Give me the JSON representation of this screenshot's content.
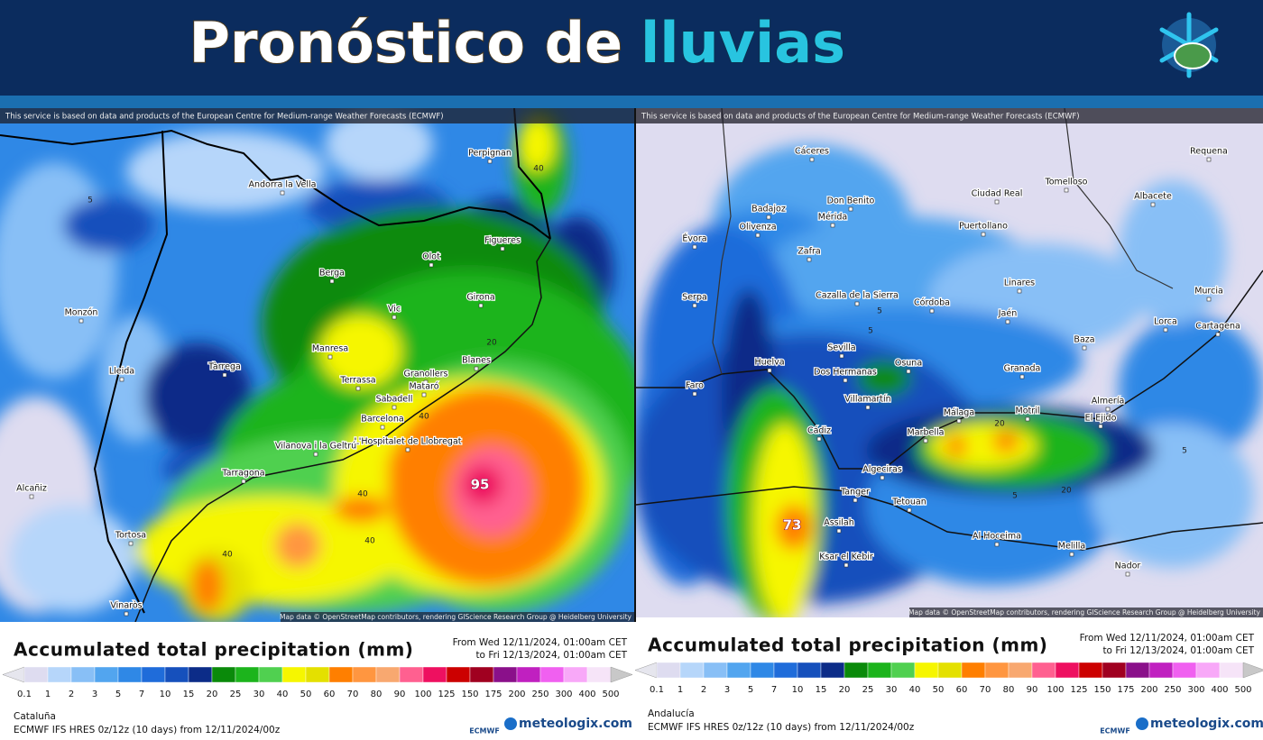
{
  "header": {
    "title": "Pronóstico de",
    "title_highlight": "lluvias"
  },
  "legend_scale": {
    "labels": [
      "0.1",
      "1",
      "2",
      "3",
      "5",
      "7",
      "10",
      "15",
      "20",
      "25",
      "30",
      "40",
      "50",
      "60",
      "70",
      "80",
      "90",
      "100",
      "125",
      "150",
      "175",
      "200",
      "250",
      "300",
      "400",
      "500"
    ],
    "colors": [
      "#dedcf0",
      "#b6d6fa",
      "#88bff6",
      "#52a5ef",
      "#2f88e6",
      "#1f6cda",
      "#1650bc",
      "#0c2c88",
      "#0a8a0a",
      "#1cb41c",
      "#50d050",
      "#f6f600",
      "#e4e000",
      "#ff7f00",
      "#ff9640",
      "#f8a870",
      "#ff6090",
      "#ee1060",
      "#cc0000",
      "#a00020",
      "#8a108a",
      "#c020c0",
      "#f060f0",
      "#f8a8f8",
      "#f6e4f8"
    ]
  },
  "panels": [
    {
      "attribution": "This service is based on data and products of the European Centre for Medium-range Weather Forecasts (ECMWF)",
      "map_credit": "Map data © OpenStreetMap contributors, rendering GIScience Research Group @ Heidelberg University",
      "cities": [
        "Perpignan",
        "Andorra la Vella",
        "Figueres",
        "Olot",
        "Berga",
        "Girona",
        "Monzón",
        "Vic",
        "Manresa",
        "Tàrrega",
        "Lleida",
        "Blanes",
        "Terrassa",
        "Granollers",
        "Mataró",
        "Sabadell",
        "Barcelona",
        "L'Hospitalet de Llobregat",
        "Vilanova i la Geltrú",
        "Tarragona",
        "Alcañiz",
        "Tortosa",
        "Vinaròs"
      ],
      "contour_labels": [
        "40",
        "5",
        "20",
        "40",
        "40",
        "40",
        "40",
        "95"
      ],
      "legend": {
        "title": "Accumulated total precipitation (mm)",
        "period_from": "From Wed 12/11/2024, 01:00am CET",
        "period_to": "to Fri 12/13/2024, 01:00am CET",
        "region": "Cataluña",
        "model": "ECMWF IFS HRES 0z/12z (10 days) from 12/11/2024/00z",
        "logo_small": "ECMWF",
        "logo": "meteologix.com"
      }
    },
    {
      "attribution": "This service is based on data and products of the European Centre for Medium-range Weather Forecasts (ECMWF)",
      "map_credit": "Map data © OpenStreetMap contributors, rendering GIScience Research Group @ Heidelberg University",
      "cities": [
        "Cáceres",
        "Ciudad Real",
        "Tomelloso",
        "Albacete",
        "Requena",
        "Don Benito",
        "Badajoz",
        "Mérida",
        "Puertollano",
        "Olivenza",
        "Évora",
        "Zafra",
        "Cazalla de la Sierra",
        "Córdoba",
        "Linares",
        "Jaén",
        "Serpa",
        "Murcia",
        "Lorca",
        "Cartagena",
        "Sevilla",
        "Huelva",
        "Dos Hermanas",
        "Osuna",
        "Granada",
        "Baza",
        "Faro",
        "Villamartín",
        "Almería",
        "Málaga",
        "Motril",
        "El Ejido",
        "Cádiz",
        "Marbella",
        "Algeciras",
        "Tanger",
        "Tetouan",
        "Assilah",
        "Al Hoceima",
        "Melilla",
        "Ksar el Kebir",
        "Nador"
      ],
      "contour_labels": [
        "5",
        "5",
        "20",
        "20",
        "5",
        "5",
        "73"
      ],
      "legend": {
        "title": "Accumulated total precipitation (mm)",
        "period_from": "From Wed 12/11/2024, 01:00am CET",
        "period_to": "to Fri 12/13/2024, 01:00am CET",
        "region": "Andalucía",
        "model": "ECMWF IFS HRES 0z/12z (10 days) from 12/11/2024/00z",
        "logo_small": "ECMWF",
        "logo": "meteologix.com"
      }
    }
  ]
}
